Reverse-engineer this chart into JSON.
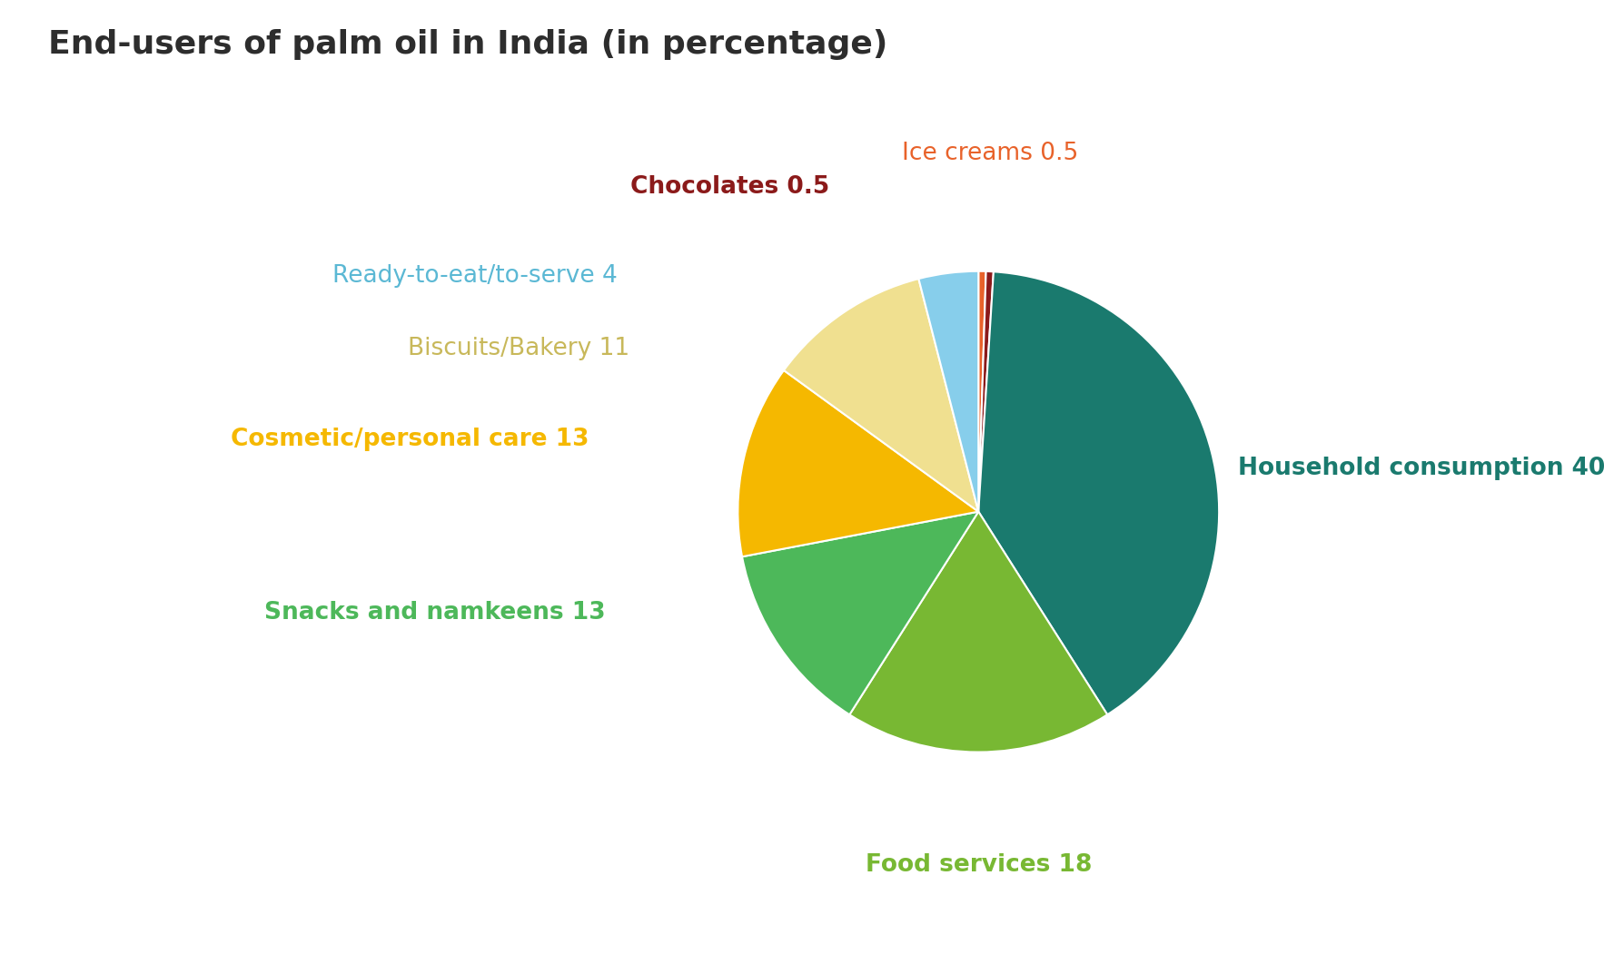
{
  "title": "End-users of palm oil in India (in percentage)",
  "title_fontsize": 26,
  "title_color": "#2d2d2d",
  "title_fontweight": "bold",
  "slices": [
    {
      "label": "Household consumption",
      "value": 40,
      "color": "#1a7a6e"
    },
    {
      "label": "Food services",
      "value": 18,
      "color": "#78b833"
    },
    {
      "label": "Snacks and namkeens",
      "value": 13,
      "color": "#4db85a"
    },
    {
      "label": "Cosmetic/personal care",
      "value": 13,
      "color": "#f5b800"
    },
    {
      "label": "Biscuits/Bakery",
      "value": 11,
      "color": "#f0e090"
    },
    {
      "label": "Ready-to-eat/to-serve",
      "value": 4,
      "color": "#87ceeb"
    },
    {
      "label": "Chocolates",
      "value": 0.5,
      "color": "#8b1a1a"
    },
    {
      "label": "Ice creams",
      "value": 0.5,
      "color": "#e8622a"
    }
  ],
  "label_texts": [
    {
      "text": "Household consumption 40",
      "color": "#1a7a6e",
      "fontsize": 19,
      "fontweight": "bold"
    },
    {
      "text": "Food services 18",
      "color": "#78b833",
      "fontsize": 19,
      "fontweight": "bold"
    },
    {
      "text": "Snacks and namkeens 13",
      "color": "#4db85a",
      "fontsize": 19,
      "fontweight": "bold"
    },
    {
      "text": "Cosmetic/personal care 13",
      "color": "#f5b800",
      "fontsize": 19,
      "fontweight": "bold"
    },
    {
      "text": "Biscuits/Bakery 11",
      "color": "#c8b85a",
      "fontsize": 19,
      "fontweight": "normal"
    },
    {
      "text": "Ready-to-eat/to-serve 4",
      "color": "#5bb8d4",
      "fontsize": 19,
      "fontweight": "normal"
    },
    {
      "text": "Chocolates 0.5",
      "color": "#8b1a1a",
      "fontsize": 19,
      "fontweight": "bold"
    },
    {
      "text": "Ice creams 0.5",
      "color": "#e8622a",
      "fontsize": 19,
      "fontweight": "normal"
    }
  ],
  "background_color": "#ffffff",
  "figsize": [
    17.66,
    10.51
  ],
  "dpi": 100
}
